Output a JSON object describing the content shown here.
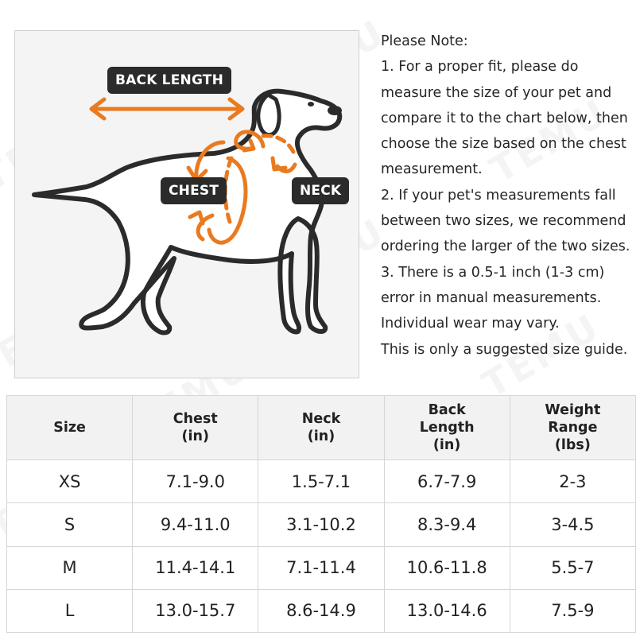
{
  "watermark": "TEMU",
  "diagram": {
    "labels": {
      "back_length": "BACK LENGTH",
      "chest": "CHEST",
      "neck": "NECK"
    },
    "accent_color": "#ea7a1f",
    "label_bg": "#2b2b2b"
  },
  "notes": {
    "lines": [
      "Please Note:",
      "1. For a proper fit, please do",
      "measure the size of your pet and",
      "compare it to the chart below, then",
      "choose the size based on the chest",
      "measurement.",
      "2. If your pet's measurements fall",
      "between two sizes, we recommend",
      "ordering the larger of the two sizes.",
      "3. There is a 0.5-1 inch (1-3 cm)",
      "error in manual measurements.",
      "Individual wear may vary.",
      "This is only a suggested size guide."
    ]
  },
  "table": {
    "headers": [
      {
        "lines": [
          "Size"
        ]
      },
      {
        "lines": [
          "Chest",
          "(in)"
        ]
      },
      {
        "lines": [
          "Neck",
          "(in)"
        ]
      },
      {
        "lines": [
          "Back",
          "Length",
          "(in)"
        ]
      },
      {
        "lines": [
          "Weight",
          "Range",
          "(lbs)"
        ]
      }
    ],
    "rows": [
      [
        "XS",
        "7.1-9.0",
        "1.5-7.1",
        "6.7-7.9",
        "2-3"
      ],
      [
        "S",
        "9.4-11.0",
        "3.1-10.2",
        "8.3-9.4",
        "3-4.5"
      ],
      [
        "M",
        "11.4-14.1",
        "7.1-11.4",
        "10.6-11.8",
        "5.5-7"
      ],
      [
        "L",
        "13.0-15.7",
        "8.6-14.9",
        "13.0-14.6",
        "7.5-9"
      ]
    ]
  }
}
